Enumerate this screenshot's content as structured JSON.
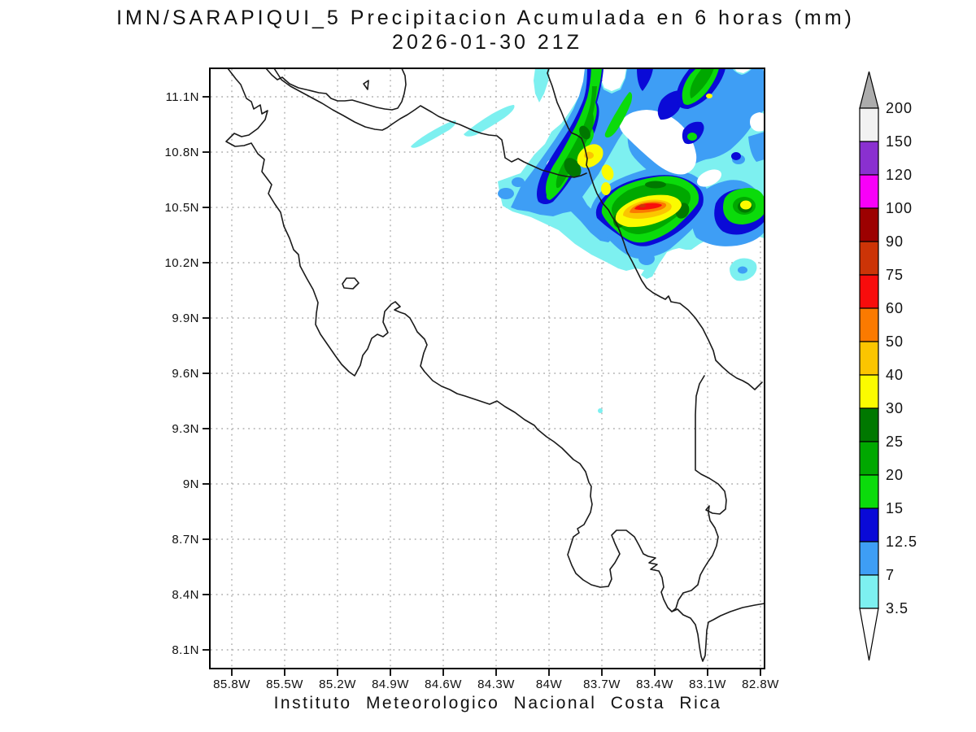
{
  "title": {
    "line1": "IMN/SARAPIQUI_5 Precipitacion Acumulada en 6 horas (mm)",
    "line2": "2026-01-30 21Z"
  },
  "footer": "Instituto Meteorologico Nacional Costa Rica",
  "map": {
    "lat_labels": [
      "11.1N",
      "10.8N",
      "10.5N",
      "10.2N",
      "9.9N",
      "9.6N",
      "9.3N",
      "9N",
      "8.7N",
      "8.4N",
      "8.1N"
    ],
    "lon_labels": [
      "85.8W",
      "85.5W",
      "85.2W",
      "84.9W",
      "84.6W",
      "84.3W",
      "84W",
      "83.7W",
      "83.4W",
      "83.1W",
      "82.8W"
    ]
  },
  "colorbar": {
    "labels": [
      "200",
      "150",
      "120",
      "100",
      "90",
      "75",
      "60",
      "50",
      "40",
      "30",
      "25",
      "20",
      "15",
      "12.5",
      "7",
      "3.5"
    ],
    "segment_colors": [
      "#F2F2F2",
      "#8A30D0",
      "#F800F8",
      "#9C0101",
      "#CC3407",
      "#F80C0C",
      "#FB7A00",
      "#FBC500",
      "#FBFB00",
      "#007800",
      "#00A800",
      "#0BDB0B",
      "#0A0AD7",
      "#3E9EF5",
      "#7DF0F0"
    ],
    "over_color": "#ACACAC",
    "under_color": "#FFFFFF"
  },
  "palette": {
    "cyan": "#7DF0F0",
    "lightblue": "#3E9EF5",
    "blue": "#0A0AD7",
    "green": "#0BDB0B",
    "green_med": "#00A800",
    "green_dark": "#007800",
    "yellow": "#FBFB00",
    "amber": "#FBC500",
    "orange": "#FB7A00",
    "red": "#F80C0C",
    "brick": "#CC3407",
    "white": "#FFFFFF",
    "grid": "#ADADAD",
    "frame": "#000000"
  },
  "chart_data": {
    "type": "filled_contour_map",
    "units": "mm",
    "contour_levels_mm": [
      3.5,
      7,
      12.5,
      15,
      20,
      25,
      30,
      40,
      50,
      60,
      75,
      90,
      100,
      120,
      150,
      200
    ],
    "region": "Costa Rica",
    "precip_area": "northeast Caribbean sector near 10.3N-11.2N, 82.8W-84.3W",
    "max_shaded_band_mm": "60-75 with small 75-90 core",
    "max_location_approx": "10.55N 83.35W"
  }
}
